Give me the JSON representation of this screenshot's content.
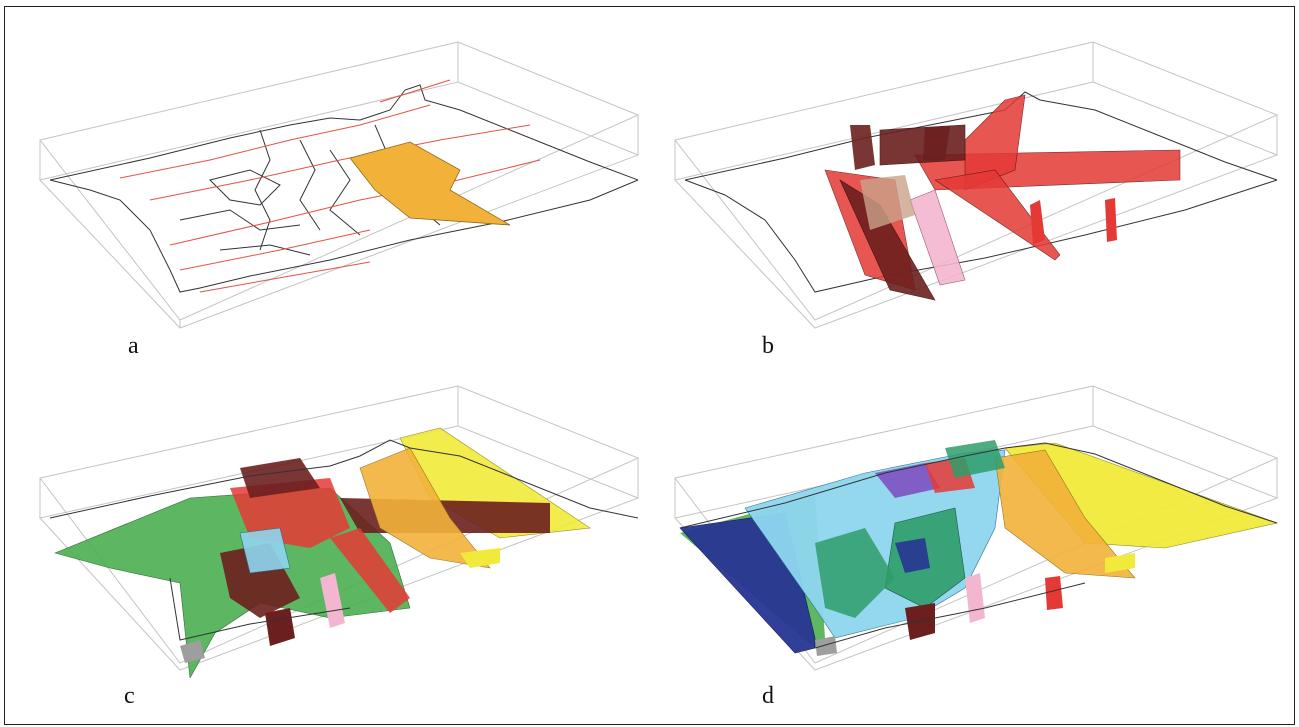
{
  "panels": [
    {
      "id": "a",
      "label": "a"
    },
    {
      "id": "b",
      "label": "b"
    },
    {
      "id": "c",
      "label": "c"
    },
    {
      "id": "d",
      "label": "d"
    }
  ],
  "colors": {
    "box_edge": "#bdbdbd",
    "outline": "#2a2a2a",
    "fault_trace": "#e8504a",
    "orange_unit": "#f2b23a",
    "red_fault": "#e53935",
    "dark_fault": "#6b1f1f",
    "pink_fault": "#f3b6d0",
    "green_unit": "#4caf50",
    "yellow_unit": "#f2ea3a",
    "cyan_unit": "#8fd6ef",
    "blue_unit": "#283593",
    "purple_unit": "#7e57c2",
    "teal_unit": "#2e9e6a"
  }
}
